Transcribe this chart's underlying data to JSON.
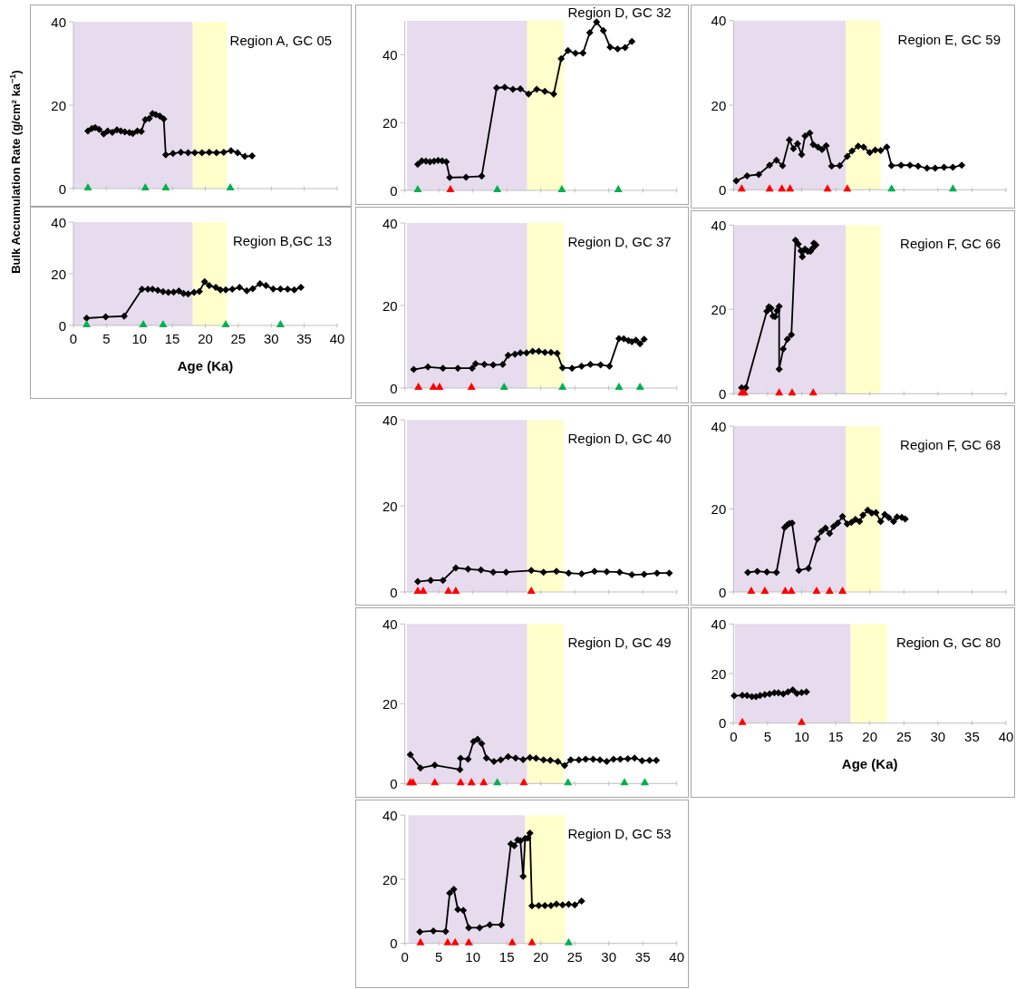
{
  "chart_data": [
    {
      "type": "line",
      "title": "Region A, GC 05",
      "ylabel": "Bulk Accumulation Rate (g/cm² ka$^{−1}$)",
      "xlim": [
        0,
        40
      ],
      "ylim": [
        0,
        40
      ],
      "xticks": [
        0,
        5,
        10,
        15,
        20,
        25,
        30,
        35,
        40
      ],
      "yticks": [
        0,
        20,
        40
      ],
      "tick_labels": "y",
      "bands": [
        {
          "axis": "x",
          "from": 0,
          "to": 18.1,
          "color": "#e6dcee"
        },
        {
          "axis": "x",
          "from": 18.1,
          "to": 23.3,
          "color": "#ffffcc"
        }
      ],
      "series": [
        {
          "type": "line",
          "color": "#000000",
          "marker": "diamond",
          "x": [
            2.2,
            2.8,
            3.3,
            3.9,
            4.6,
            5.2,
            5.9,
            6.6,
            7.2,
            7.8,
            8.5,
            9.0,
            9.7,
            10.3,
            10.9,
            11.5,
            12.0,
            12.5,
            13.1,
            13.7,
            14.0,
            15.1,
            16.3,
            17.4,
            18.4,
            19.5,
            20.6,
            21.7,
            22.8,
            23.9,
            24.9,
            26.0,
            27.1
          ],
          "values": [
            13.8,
            14.4,
            14.6,
            14.2,
            13.1,
            13.8,
            13.5,
            14.1,
            13.8,
            13.6,
            13.4,
            13.2,
            13.8,
            13.7,
            16.5,
            16.8,
            18.0,
            17.7,
            17.4,
            16.7,
            8.1,
            8.4,
            8.7,
            8.6,
            8.6,
            8.6,
            8.7,
            8.6,
            8.7,
            9.1,
            8.6,
            7.7,
            7.8
          ]
        },
        {
          "type": "scatter",
          "color": "#00b050",
          "marker": "triangle",
          "x": [
            2.2,
            10.9,
            14.0,
            23.8
          ],
          "values": [
            0,
            0,
            0,
            0
          ]
        }
      ]
    },
    {
      "type": "line",
      "title": "Region D, GC 32",
      "xlim": [
        0,
        40
      ],
      "ylim": [
        0,
        50
      ],
      "xticks": [
        0,
        5,
        10,
        15,
        20,
        25,
        30,
        35,
        40
      ],
      "yticks": [
        0,
        20,
        40
      ],
      "tick_labels": "y",
      "bands": [
        {
          "axis": "x",
          "from": 0.3,
          "to": 18.0,
          "color": "#e6dcee"
        },
        {
          "axis": "x",
          "from": 18.0,
          "to": 23.4,
          "color": "#ffffcc"
        }
      ],
      "series": [
        {
          "type": "line",
          "color": "#000000",
          "marker": "diamond",
          "x": [
            1.9,
            2.5,
            3.1,
            3.7,
            4.3,
            4.9,
            5.5,
            6.1,
            6.6,
            9.0,
            11.3,
            13.5,
            14.7,
            15.9,
            17.0,
            18.2,
            19.4,
            20.6,
            21.9,
            23.0,
            24.0,
            25.1,
            26.2,
            27.2,
            28.2,
            29.2,
            30.2,
            31.3,
            32.4,
            33.4
          ],
          "values": [
            7.7,
            8.7,
            8.6,
            8.4,
            8.6,
            8.8,
            8.7,
            8.4,
            3.8,
            3.9,
            4.2,
            30.2,
            30.4,
            29.8,
            29.9,
            28.4,
            29.8,
            29.2,
            28.4,
            38.8,
            41.2,
            40.4,
            40.5,
            46.5,
            49.6,
            47.1,
            42.2,
            41.7,
            42.1,
            43.9
          ]
        },
        {
          "type": "scatter",
          "color": "#ff0000",
          "marker": "triangle",
          "x": [
            6.7
          ],
          "values": [
            0
          ]
        },
        {
          "type": "scatter",
          "color": "#00b050",
          "marker": "triangle",
          "x": [
            1.9,
            13.6,
            23.1,
            31.4
          ],
          "values": [
            0,
            0,
            0,
            0
          ]
        }
      ]
    },
    {
      "type": "line",
      "title": "Region E, GC 59",
      "xlim": [
        0,
        40
      ],
      "ylim": [
        0,
        40
      ],
      "xticks": [
        0,
        5,
        10,
        15,
        20,
        25,
        30,
        35,
        40
      ],
      "yticks": [
        0,
        20,
        40
      ],
      "tick_labels": "y",
      "bands": [
        {
          "axis": "x",
          "from": 0,
          "to": 16.5,
          "color": "#e6dcee"
        },
        {
          "axis": "x",
          "from": 16.5,
          "to": 21.6,
          "color": "#ffffcc"
        }
      ],
      "series": [
        {
          "type": "line",
          "color": "#000000",
          "marker": "diamond",
          "x": [
            0.4,
            2.0,
            3.7,
            5.3,
            6.3,
            7.2,
            8.2,
            8.8,
            9.4,
            10.0,
            10.5,
            11.2,
            11.7,
            12.4,
            13.0,
            13.6,
            14.4,
            15.6,
            16.7,
            17.4,
            18.3,
            19.1,
            20.0,
            20.8,
            21.6,
            22.5,
            23.2,
            24.6,
            25.9,
            27.1,
            28.4,
            29.6,
            30.9,
            32.2,
            33.5
          ],
          "values": [
            2.1,
            3.3,
            3.6,
            5.8,
            7.0,
            5.7,
            11.8,
            9.7,
            10.9,
            8.3,
            12.7,
            13.4,
            10.7,
            10.1,
            9.5,
            10.4,
            5.6,
            5.7,
            7.9,
            9.2,
            10.3,
            10.1,
            8.8,
            9.4,
            9.3,
            10.1,
            5.7,
            5.8,
            5.8,
            5.6,
            5.1,
            5.1,
            5.3,
            5.3,
            5.8
          ]
        },
        {
          "type": "scatter",
          "color": "#ff0000",
          "marker": "triangle",
          "x": [
            1.2,
            5.3,
            7.1,
            8.3,
            13.8,
            16.7
          ],
          "values": [
            0,
            0,
            0,
            0,
            0,
            0
          ]
        },
        {
          "type": "scatter",
          "color": "#00b050",
          "marker": "triangle",
          "x": [
            23.2,
            32.2
          ],
          "values": [
            0,
            0
          ]
        }
      ]
    },
    {
      "type": "line",
      "title": "Region B,GC 13",
      "xlabel": "Age (Ka)",
      "xlim": [
        0,
        40
      ],
      "ylim": [
        0,
        40
      ],
      "xticks": [
        0,
        5,
        10,
        15,
        20,
        25,
        30,
        35,
        40
      ],
      "yticks": [
        0,
        20,
        40
      ],
      "bands": [
        {
          "axis": "x",
          "from": 0,
          "to": 18.1,
          "color": "#e6dcee"
        },
        {
          "axis": "x",
          "from": 18.1,
          "to": 23.3,
          "color": "#ffffcc"
        }
      ],
      "series": [
        {
          "type": "line",
          "color": "#000000",
          "marker": "diamond",
          "x": [
            2.0,
            4.9,
            7.7,
            10.4,
            11.3,
            12.0,
            12.8,
            13.6,
            14.4,
            15.2,
            16.0,
            16.7,
            17.4,
            18.3,
            19.1,
            19.9,
            20.6,
            21.6,
            22.3,
            23.1,
            24.1,
            25.2,
            26.3,
            27.2,
            28.3,
            29.2,
            30.3,
            31.4,
            32.5,
            33.5,
            34.5
          ],
          "values": [
            2.8,
            3.3,
            3.6,
            14.0,
            14.0,
            14.0,
            13.6,
            13.1,
            12.8,
            12.9,
            13.3,
            12.4,
            12.2,
            12.8,
            13.2,
            16.9,
            15.4,
            14.7,
            13.8,
            13.8,
            14.0,
            14.7,
            13.4,
            14.2,
            16.1,
            15.4,
            14.1,
            14.1,
            14.0,
            13.8,
            14.7
          ]
        },
        {
          "type": "scatter",
          "color": "#00b050",
          "marker": "triangle",
          "x": [
            2.0,
            10.6,
            13.6,
            23.1,
            31.4
          ],
          "values": [
            0,
            0,
            0,
            0,
            0
          ]
        }
      ]
    },
    {
      "type": "line",
      "title": "Region D, GC 37",
      "xlim": [
        0,
        40
      ],
      "ylim": [
        0,
        40
      ],
      "xticks": [
        0,
        5,
        10,
        15,
        20,
        25,
        30,
        35,
        40
      ],
      "yticks": [
        0,
        20,
        40
      ],
      "tick_labels": "y",
      "bands": [
        {
          "axis": "x",
          "from": 0.3,
          "to": 18.0,
          "color": "#e6dcee"
        },
        {
          "axis": "x",
          "from": 18.0,
          "to": 23.4,
          "color": "#ffffcc"
        }
      ],
      "series": [
        {
          "type": "line",
          "color": "#000000",
          "marker": "diamond",
          "x": [
            1.3,
            3.4,
            5.6,
            7.8,
            9.9,
            10.4,
            11.7,
            13.0,
            14.4,
            15.2,
            16.2,
            17.0,
            17.9,
            18.8,
            19.7,
            20.6,
            21.5,
            22.4,
            23.2,
            24.6,
            26.0,
            27.3,
            28.8,
            30.1,
            31.5,
            32.2,
            32.9,
            33.4,
            34.0,
            34.6,
            35.2
          ],
          "values": [
            4.5,
            5.1,
            4.8,
            4.8,
            4.8,
            5.9,
            5.7,
            5.6,
            5.7,
            7.9,
            8.2,
            8.5,
            8.5,
            8.9,
            8.9,
            8.6,
            8.6,
            8.4,
            4.9,
            4.8,
            5.3,
            5.7,
            5.6,
            5.3,
            12.0,
            11.9,
            11.5,
            11.2,
            11.6,
            10.7,
            11.8
          ]
        },
        {
          "type": "scatter",
          "color": "#ff0000",
          "marker": "triangle",
          "x": [
            2.0,
            4.2,
            5.1,
            9.8
          ],
          "values": [
            0,
            0,
            0,
            0
          ]
        },
        {
          "type": "scatter",
          "color": "#00b050",
          "marker": "triangle",
          "x": [
            14.6,
            23.2,
            31.5,
            34.6
          ],
          "values": [
            0,
            0,
            0,
            0
          ]
        }
      ]
    },
    {
      "type": "line",
      "title": "Region F,  GC 66",
      "xlim": [
        0,
        40
      ],
      "ylim": [
        0,
        40
      ],
      "xticks": [
        0,
        5,
        10,
        15,
        20,
        25,
        30,
        35,
        40
      ],
      "yticks": [
        0,
        20,
        40
      ],
      "tick_labels": "y",
      "bands": [
        {
          "axis": "x",
          "from": 0,
          "to": 16.5,
          "color": "#e6dcee"
        },
        {
          "axis": "x",
          "from": 16.5,
          "to": 21.6,
          "color": "#ffffcc"
        }
      ],
      "series": [
        {
          "type": "line",
          "color": "#000000",
          "marker": "diamond",
          "x": [
            1.2,
            1.8,
            4.9,
            5.2,
            5.5,
            5.8,
            6.1,
            6.4,
            6.7,
            6.7,
            7.3,
            7.9,
            8.5,
            9.1,
            9.5,
            9.9,
            10.1,
            10.5,
            10.9,
            11.3,
            11.6,
            11.8,
            12.1
          ],
          "values": [
            1.4,
            1.4,
            19.6,
            20.6,
            20.3,
            18.4,
            18.3,
            19.7,
            20.7,
            5.8,
            10.6,
            12.9,
            14.0,
            36.4,
            35.5,
            33.9,
            32.5,
            34.3,
            33.8,
            33.8,
            34.5,
            35.7,
            35.3
          ]
        },
        {
          "type": "scatter",
          "color": "#ff0000",
          "marker": "triangle",
          "x": [
            1.2,
            1.6,
            6.7,
            8.6,
            11.7
          ],
          "values": [
            0,
            0,
            0,
            0,
            0
          ]
        }
      ]
    },
    {
      "type": "line",
      "title": "Region D, GC 40",
      "xlim": [
        0,
        40
      ],
      "ylim": [
        0,
        40
      ],
      "xticks": [
        0,
        5,
        10,
        15,
        20,
        25,
        30,
        35,
        40
      ],
      "yticks": [
        0,
        20,
        40
      ],
      "tick_labels": "y",
      "bands": [
        {
          "axis": "x",
          "from": 0.3,
          "to": 18.0,
          "color": "#e6dcee"
        },
        {
          "axis": "x",
          "from": 18.0,
          "to": 23.4,
          "color": "#ffffcc"
        }
      ],
      "series": [
        {
          "type": "line",
          "color": "#000000",
          "marker": "diamond",
          "x": [
            1.9,
            3.8,
            5.6,
            7.5,
            9.3,
            11.2,
            13.0,
            14.9,
            18.6,
            20.4,
            22.3,
            24.1,
            26.0,
            27.9,
            29.7,
            31.6,
            33.4,
            35.2,
            37.1,
            38.9
          ],
          "values": [
            2.4,
            2.7,
            2.7,
            5.6,
            5.3,
            5.1,
            4.6,
            4.6,
            5.0,
            4.6,
            4.8,
            4.4,
            4.2,
            4.8,
            4.7,
            4.6,
            4.0,
            4.1,
            4.4,
            4.4
          ]
        },
        {
          "type": "scatter",
          "color": "#ff0000",
          "marker": "triangle",
          "x": [
            1.9,
            2.7,
            6.4,
            7.5,
            18.6
          ],
          "values": [
            0,
            0,
            0,
            0,
            0
          ]
        }
      ]
    },
    {
      "type": "line",
      "title": "Region F, GC 68",
      "xlim": [
        0,
        40
      ],
      "ylim": [
        0,
        40
      ],
      "xticks": [
        0,
        5,
        10,
        15,
        20,
        25,
        30,
        35,
        40
      ],
      "yticks": [
        0,
        20,
        40
      ],
      "tick_labels": "y",
      "bands": [
        {
          "axis": "x",
          "from": 0,
          "to": 16.5,
          "color": "#e6dcee"
        },
        {
          "axis": "x",
          "from": 16.5,
          "to": 21.6,
          "color": "#ffffcc"
        }
      ],
      "series": [
        {
          "type": "line",
          "color": "#000000",
          "marker": "diamond",
          "x": [
            2.1,
            3.5,
            4.9,
            6.3,
            7.5,
            7.9,
            8.2,
            8.6,
            9.6,
            11.0,
            12.3,
            12.9,
            13.5,
            14.1,
            14.7,
            15.3,
            16.0,
            16.7,
            17.3,
            17.9,
            18.5,
            19.0,
            19.7,
            20.3,
            20.9,
            21.6,
            22.2,
            22.8,
            23.5,
            24.0,
            24.7,
            25.2
          ],
          "values": [
            4.7,
            5.0,
            4.8,
            4.7,
            15.5,
            16.2,
            16.5,
            16.6,
            5.2,
            5.7,
            12.8,
            14.6,
            15.4,
            14.1,
            15.8,
            16.6,
            18.2,
            16.4,
            16.8,
            17.5,
            17.0,
            18.5,
            19.7,
            19.0,
            19.1,
            17.0,
            18.7,
            17.9,
            17.0,
            18.1,
            18.0,
            17.6
          ]
        },
        {
          "type": "scatter",
          "color": "#ff0000",
          "marker": "triangle",
          "x": [
            2.6,
            4.6,
            7.6,
            8.5,
            12.2,
            14.1,
            16.0
          ],
          "values": [
            0,
            0,
            0,
            0,
            0,
            0,
            0
          ]
        }
      ]
    },
    {
      "type": "line",
      "title": "Region D, GC 49",
      "xlim": [
        0,
        40
      ],
      "ylim": [
        0,
        40
      ],
      "xticks": [
        0,
        5,
        10,
        15,
        20,
        25,
        30,
        35,
        40
      ],
      "yticks": [
        0,
        20,
        40
      ],
      "tick_labels": "y",
      "bands": [
        {
          "axis": "x",
          "from": 0.3,
          "to": 18.0,
          "color": "#e6dcee"
        },
        {
          "axis": "x",
          "from": 18.0,
          "to": 23.4,
          "color": "#ffffcc"
        }
      ],
      "series": [
        {
          "type": "line",
          "color": "#000000",
          "marker": "diamond",
          "x": [
            0.8,
            2.3,
            4.4,
            8.1,
            8.2,
            9.3,
            10.1,
            10.7,
            11.3,
            12.0,
            13.1,
            14.1,
            15.2,
            16.3,
            17.4,
            18.4,
            19.3,
            20.4,
            21.4,
            22.5,
            23.5,
            24.4,
            25.6,
            26.6,
            27.7,
            28.7,
            29.7,
            30.7,
            31.7,
            32.8,
            33.8,
            34.9,
            36.0,
            37.0
          ],
          "values": [
            7.2,
            3.9,
            4.6,
            3.5,
            6.3,
            6.1,
            10.5,
            11.1,
            10.0,
            6.4,
            5.5,
            5.9,
            6.7,
            6.4,
            6.0,
            6.5,
            6.3,
            5.9,
            5.8,
            5.5,
            4.5,
            5.9,
            5.9,
            6.1,
            6.1,
            5.9,
            5.5,
            6.1,
            6.1,
            6.2,
            6.4,
            5.7,
            5.8,
            5.8
          ]
        },
        {
          "type": "scatter",
          "color": "#ff0000",
          "marker": "triangle",
          "x": [
            0.8,
            1.2,
            4.4,
            8.2,
            9.8,
            11.6,
            17.5
          ],
          "values": [
            0,
            0,
            0,
            0,
            0,
            0,
            0
          ]
        },
        {
          "type": "scatter",
          "color": "#00b050",
          "marker": "triangle",
          "x": [
            13.6,
            24.0,
            32.3,
            35.3
          ],
          "values": [
            0,
            0,
            0,
            0
          ]
        }
      ]
    },
    {
      "type": "line",
      "title": "Region G, GC 80",
      "xlabel": "Age (Ka)",
      "xlim": [
        0,
        40
      ],
      "ylim": [
        0,
        40
      ],
      "xticks": [
        0,
        5,
        10,
        15,
        20,
        25,
        30,
        35,
        40
      ],
      "yticks": [
        0,
        20,
        40
      ],
      "bands": [
        {
          "axis": "x",
          "from": 0.2,
          "to": 17.2,
          "color": "#e6dcee"
        },
        {
          "axis": "x",
          "from": 17.2,
          "to": 22.5,
          "color": "#ffffcc"
        }
      ],
      "series": [
        {
          "type": "line",
          "color": "#000000",
          "marker": "diamond",
          "x": [
            0.1,
            1.3,
            2.0,
            2.7,
            3.3,
            3.9,
            4.6,
            5.3,
            6.0,
            6.6,
            7.3,
            8.0,
            8.7,
            9.3,
            10.0,
            10.7
          ],
          "values": [
            11.0,
            11.2,
            11.1,
            10.7,
            10.7,
            11.1,
            11.5,
            11.8,
            12.2,
            12.2,
            11.8,
            12.6,
            13.4,
            12.0,
            12.3,
            12.6
          ]
        },
        {
          "type": "scatter",
          "color": "#ff0000",
          "marker": "triangle",
          "x": [
            1.3,
            10.0
          ],
          "values": [
            0,
            0
          ]
        }
      ]
    },
    {
      "type": "line",
      "title": "Region D, GC 53",
      "xlim": [
        0,
        40
      ],
      "ylim": [
        0,
        40
      ],
      "xticks": [
        0,
        5,
        10,
        15,
        20,
        25,
        30,
        35,
        40
      ],
      "yticks": [
        0,
        20,
        40
      ],
      "bands": [
        {
          "axis": "x",
          "from": 0.5,
          "to": 17.7,
          "color": "#e6dcee"
        },
        {
          "axis": "x",
          "from": 17.7,
          "to": 23.6,
          "color": "#ffffcc"
        }
      ],
      "series": [
        {
          "type": "line",
          "color": "#000000",
          "marker": "diamond",
          "x": [
            2.2,
            4.2,
            6.0,
            6.6,
            7.2,
            7.8,
            8.6,
            9.4,
            11.0,
            12.5,
            14.2,
            15.6,
            16.1,
            16.6,
            17.0,
            17.4,
            17.7,
            18.1,
            18.4,
            18.7,
            19.7,
            20.6,
            21.5,
            22.3,
            23.2,
            24.1,
            25.0,
            26.0
          ],
          "values": [
            3.6,
            3.9,
            3.7,
            15.7,
            16.9,
            10.6,
            10.3,
            4.9,
            4.9,
            5.8,
            5.8,
            31.0,
            30.5,
            32.3,
            32.0,
            20.9,
            32.7,
            32.9,
            34.4,
            11.7,
            11.8,
            11.8,
            11.8,
            12.3,
            12.0,
            12.2,
            12.0,
            13.2
          ]
        },
        {
          "type": "scatter",
          "color": "#ff0000",
          "marker": "triangle",
          "x": [
            2.3,
            6.3,
            7.4,
            9.4,
            15.8,
            18.7
          ],
          "values": [
            0,
            0,
            0,
            0,
            0,
            0
          ]
        },
        {
          "type": "scatter",
          "color": "#00b050",
          "marker": "triangle",
          "x": [
            24.1
          ],
          "values": [
            0
          ]
        }
      ]
    }
  ]
}
